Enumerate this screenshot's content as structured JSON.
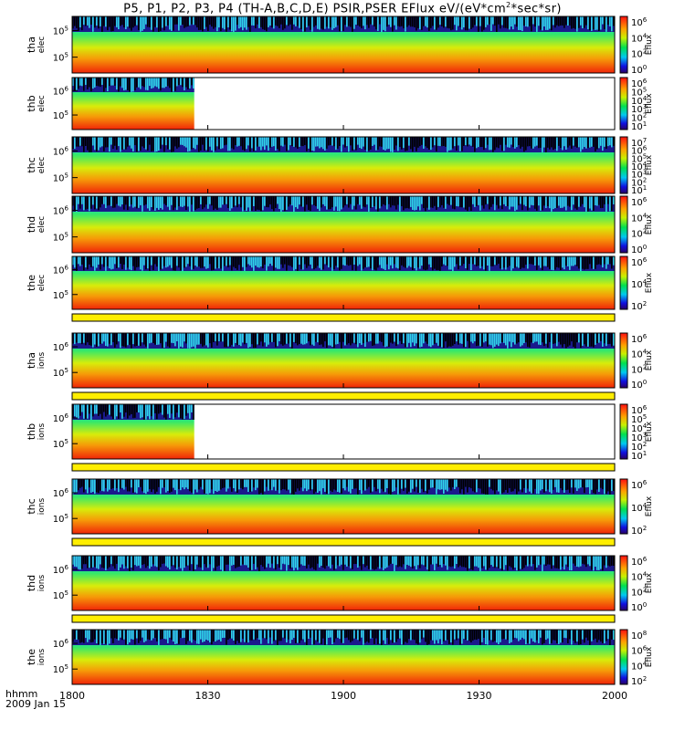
{
  "title": "P5, P1, P2, P3, P4 (TH-A,B,C,D,E) PSIR,PSER EFlux eV/(eV*cm",
  "title_sup": "2",
  "title_tail": "*sec*sr)",
  "footer": {
    "hhmm": "hhmm",
    "date": "2009 Jan 15"
  },
  "chart_data": {
    "type": "heatmap",
    "colorbar_label": "Eflux",
    "x_tick_labels": [
      "1800",
      "1830",
      "1900",
      "1930",
      "2000"
    ],
    "x_range_minutes": [
      0,
      120
    ],
    "panels": [
      {
        "name": "tha elec",
        "label_top": "tha",
        "label_bottom": "elec",
        "y_ticks": [
          "10",
          "10"
        ],
        "y_exp": [
          "5",
          "5"
        ],
        "cbar_ticks": [
          "10",
          "10",
          "10",
          "10"
        ],
        "cbar_exp": [
          "6",
          "4",
          "2",
          "0"
        ],
        "data_end_minute": 120,
        "yellow_strip": false
      },
      {
        "name": "thb elec",
        "label_top": "thb",
        "label_bottom": "elec",
        "y_ticks": [
          "10",
          "10"
        ],
        "y_exp": [
          "6",
          "5"
        ],
        "cbar_ticks": [
          "10",
          "10",
          "10",
          "10",
          "10",
          "10"
        ],
        "cbar_exp": [
          "6",
          "5",
          "4",
          "3",
          "2",
          "1"
        ],
        "data_end_minute": 27,
        "yellow_strip": false
      },
      {
        "name": "thc elec",
        "label_top": "thc",
        "label_bottom": "elec",
        "y_ticks": [
          "10",
          "10"
        ],
        "y_exp": [
          "6",
          "5"
        ],
        "cbar_ticks": [
          "10",
          "10",
          "10",
          "10",
          "10",
          "10",
          "10"
        ],
        "cbar_exp": [
          "7",
          "6",
          "5",
          "4",
          "3",
          "2",
          "1"
        ],
        "data_end_minute": 120,
        "yellow_strip": false
      },
      {
        "name": "thd elec",
        "label_top": "thd",
        "label_bottom": "elec",
        "y_ticks": [
          "10",
          "10"
        ],
        "y_exp": [
          "6",
          "5"
        ],
        "cbar_ticks": [
          "10",
          "10",
          "10",
          "10"
        ],
        "cbar_exp": [
          "6",
          "4",
          "2",
          "0"
        ],
        "data_end_minute": 120,
        "yellow_strip": false
      },
      {
        "name": "the elec",
        "label_top": "the",
        "label_bottom": "elec",
        "y_ticks": [
          "10",
          "10"
        ],
        "y_exp": [
          "6",
          "5"
        ],
        "cbar_ticks": [
          "10",
          "10",
          "10"
        ],
        "cbar_exp": [
          "6",
          "4",
          "2"
        ],
        "data_end_minute": 120,
        "yellow_strip": true
      },
      {
        "name": "tha ions",
        "label_top": "tha",
        "label_bottom": "ions",
        "y_ticks": [
          "10",
          "10"
        ],
        "y_exp": [
          "6",
          "5"
        ],
        "cbar_ticks": [
          "10",
          "10",
          "10",
          "10"
        ],
        "cbar_exp": [
          "6",
          "4",
          "2",
          "0"
        ],
        "data_end_minute": 120,
        "yellow_strip": true
      },
      {
        "name": "thb ions",
        "label_top": "thb",
        "label_bottom": "ions",
        "y_ticks": [
          "10",
          "10"
        ],
        "y_exp": [
          "6",
          "5"
        ],
        "cbar_ticks": [
          "10",
          "10",
          "10",
          "10",
          "10",
          "10"
        ],
        "cbar_exp": [
          "6",
          "5",
          "4",
          "3",
          "2",
          "1"
        ],
        "data_end_minute": 27,
        "yellow_strip": true
      },
      {
        "name": "thc ions",
        "label_top": "thc",
        "label_bottom": "ions",
        "y_ticks": [
          "10",
          "10"
        ],
        "y_exp": [
          "6",
          "5"
        ],
        "cbar_ticks": [
          "10",
          "10",
          "10"
        ],
        "cbar_exp": [
          "6",
          "4",
          "2"
        ],
        "data_end_minute": 120,
        "yellow_strip": true
      },
      {
        "name": "thd ions",
        "label_top": "thd",
        "label_bottom": "ions",
        "y_ticks": [
          "10",
          "10"
        ],
        "y_exp": [
          "6",
          "5"
        ],
        "cbar_ticks": [
          "10",
          "10",
          "10",
          "10"
        ],
        "cbar_exp": [
          "6",
          "4",
          "2",
          "0"
        ],
        "data_end_minute": 120,
        "yellow_strip": true
      },
      {
        "name": "the ions",
        "label_top": "the",
        "label_bottom": "ions",
        "y_ticks": [
          "10",
          "10"
        ],
        "y_exp": [
          "6",
          "5"
        ],
        "cbar_ticks": [
          "10",
          "10",
          "10",
          "10"
        ],
        "cbar_exp": [
          "8",
          "6",
          "4",
          "2"
        ],
        "data_end_minute": 120,
        "yellow_strip": false
      }
    ]
  }
}
